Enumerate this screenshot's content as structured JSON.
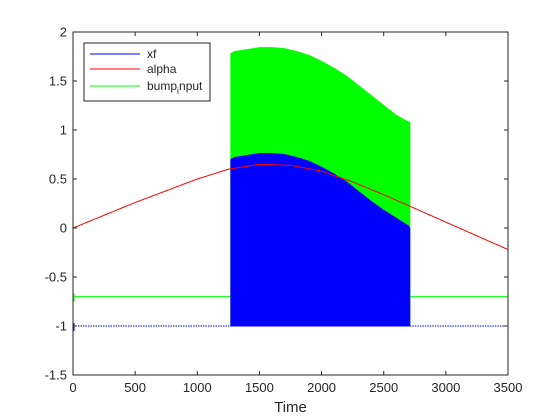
{
  "chart_data": {
    "type": "line",
    "xlabel": "Time",
    "ylabel": "",
    "title": "",
    "xlim": [
      0,
      3500
    ],
    "ylim": [
      -1.5,
      2
    ],
    "xticks": [
      0,
      500,
      1000,
      1500,
      2000,
      2500,
      3000,
      3500
    ],
    "xtick_labels": [
      "0",
      "500",
      "1000",
      "1500",
      "2000",
      "2500",
      "3000",
      "3500"
    ],
    "yticks": [
      -1.5,
      -1,
      -0.5,
      0,
      0.5,
      1,
      1.5,
      2
    ],
    "ytick_labels": [
      "-1.5",
      "-1",
      "-0.5",
      "0",
      "0.5",
      "1",
      "1.5",
      "2"
    ],
    "grid": false,
    "legend_position": "top-left",
    "series": [
      {
        "name": "xf",
        "color": "#0000ff",
        "baseline": -1.0,
        "burst_start": 1270,
        "burst_end": 2710,
        "burst_band": {
          "x": [
            1270,
            1300,
            1400,
            1500,
            1600,
            1700,
            1800,
            1900,
            2000,
            2100,
            2200,
            2300,
            2400,
            2500,
            2600,
            2700,
            2710
          ],
          "lower": [
            -1.0,
            -1.0,
            -1.0,
            -1.0,
            -1.0,
            -1.0,
            -1.0,
            -1.0,
            -1.0,
            -1.0,
            -1.0,
            -1.0,
            -1.0,
            -1.0,
            -1.0,
            -1.0,
            -1.0
          ],
          "upper": [
            0.7,
            0.72,
            0.74,
            0.76,
            0.76,
            0.75,
            0.72,
            0.68,
            0.62,
            0.55,
            0.47,
            0.37,
            0.27,
            0.18,
            0.1,
            0.02,
            0.0
          ]
        }
      },
      {
        "name": "alpha",
        "color": "#ff0000",
        "x": [
          0,
          250,
          500,
          750,
          1000,
          1250,
          1500,
          1750,
          2000,
          2250,
          2500,
          2750,
          3000,
          3250,
          3500
        ],
        "y": [
          0.0,
          0.13,
          0.26,
          0.38,
          0.5,
          0.6,
          0.65,
          0.64,
          0.58,
          0.47,
          0.34,
          0.2,
          0.06,
          -0.08,
          -0.22
        ]
      },
      {
        "name": "bump_input",
        "legend_label": "bump",
        "legend_subscript": "i",
        "legend_suffix": "nput",
        "color": "#00ff00",
        "baseline": -0.7,
        "burst_start": 1270,
        "burst_end": 2710,
        "burst_band": {
          "x": [
            1270,
            1300,
            1400,
            1500,
            1600,
            1700,
            1800,
            1900,
            2000,
            2100,
            2200,
            2300,
            2400,
            2500,
            2600,
            2700,
            2710
          ],
          "lower": [
            -1.0,
            -1.0,
            -1.0,
            -1.0,
            -1.0,
            -1.0,
            -1.0,
            -1.0,
            -1.0,
            -1.0,
            -1.0,
            -1.0,
            -1.0,
            -1.0,
            -1.0,
            -1.0,
            -1.0
          ],
          "upper": [
            1.78,
            1.8,
            1.82,
            1.84,
            1.84,
            1.83,
            1.8,
            1.76,
            1.7,
            1.63,
            1.55,
            1.45,
            1.35,
            1.25,
            1.15,
            1.08,
            1.08
          ]
        }
      }
    ]
  }
}
